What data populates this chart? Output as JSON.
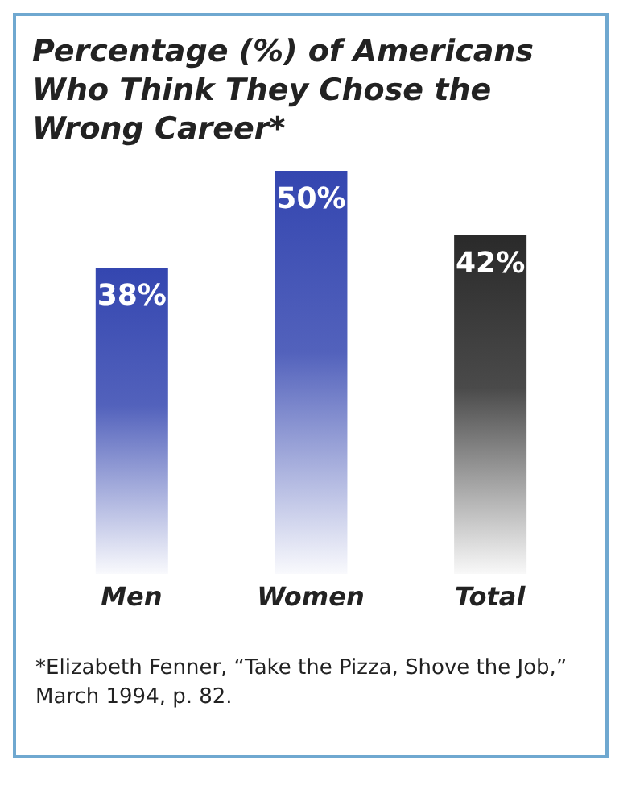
{
  "chart_data": {
    "type": "bar",
    "title": "Percentage (%) of Americans Who Think They Chose the Wrong Career*",
    "categories": [
      "Men",
      "Women",
      "Total"
    ],
    "values": [
      38,
      50,
      42
    ],
    "colors": [
      "#3446b0",
      "#3446b0",
      "#2a2a2a"
    ],
    "value_labels": [
      "38%",
      "50%",
      "42%"
    ],
    "annotations": [
      "*Elizabeth Fenner, “Take the Pizza, Shove the Job,” March 1994, p. 82."
    ]
  }
}
